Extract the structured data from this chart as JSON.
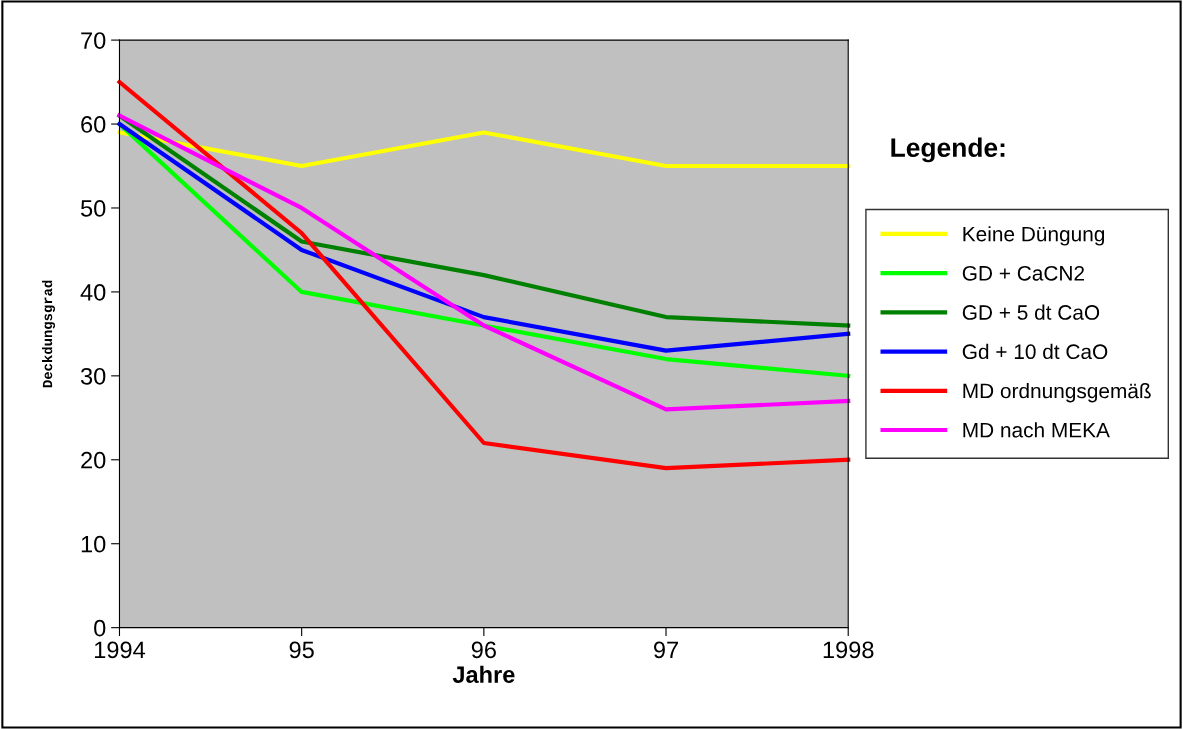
{
  "chart_data": {
    "type": "line",
    "xlabel": "Jahre",
    "ylabel": "Deckdungsgrad",
    "legend_title": "Legende:",
    "categories": [
      "1994",
      "95",
      "96",
      "97",
      "1998"
    ],
    "series": [
      {
        "name": "Keine Düngung",
        "color": "#ffff00",
        "values": [
          59,
          55,
          59,
          55,
          55
        ]
      },
      {
        "name": "GD + CaCN2",
        "color": "#00ff00",
        "values": [
          60,
          40,
          36,
          32,
          30
        ]
      },
      {
        "name": "GD + 5 dt CaO",
        "color": "#008000",
        "values": [
          61,
          46,
          42,
          37,
          36
        ]
      },
      {
        "name": "Gd + 10 dt CaO",
        "color": "#0000ff",
        "values": [
          60,
          45,
          37,
          33,
          35
        ]
      },
      {
        "name": "MD ordnungsgemäß",
        "color": "#ff0000",
        "values": [
          65,
          47,
          22,
          19,
          20
        ]
      },
      {
        "name": "MD nach MEKA",
        "color": "#ff00ff",
        "values": [
          61,
          50,
          36,
          26,
          27
        ]
      }
    ],
    "ylim": [
      0,
      70
    ],
    "yticks": [
      0,
      10,
      20,
      30,
      40,
      50,
      60,
      70
    ],
    "grid": false,
    "legend": "right",
    "marker": "none",
    "line_style": "solid"
  }
}
